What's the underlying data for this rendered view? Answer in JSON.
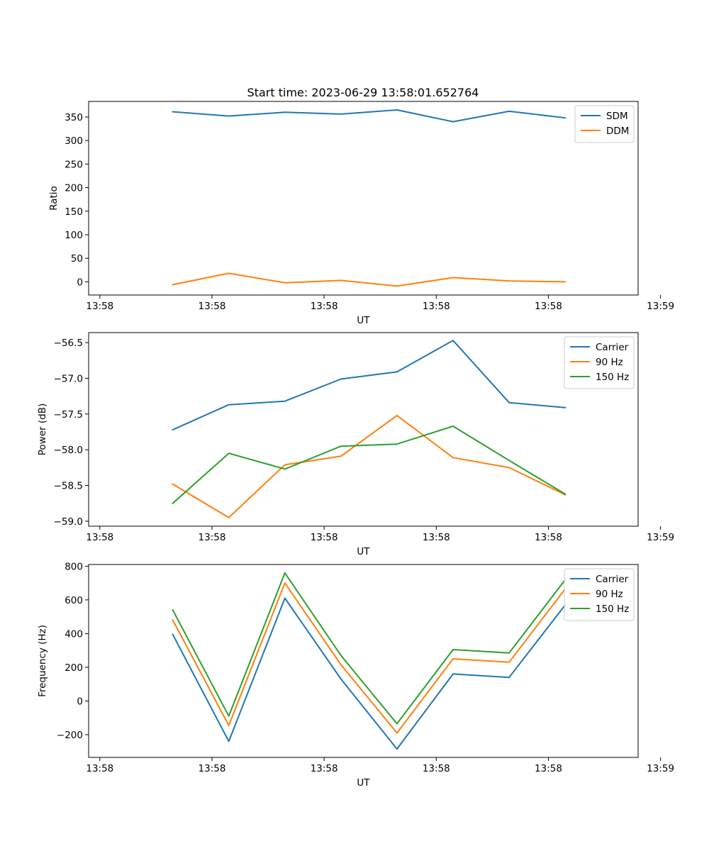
{
  "colors": {
    "blue": "#1f77b4",
    "orange": "#ff7f0e",
    "green": "#2ca02c"
  },
  "chart_data": [
    {
      "type": "line",
      "title": "Start time: 2023-06-29 13:58:01.652764",
      "xlabel": "UT",
      "ylabel": "Ratio",
      "x": [
        1.65,
        2.15,
        2.65,
        3.15,
        3.65,
        4.15,
        4.65,
        5.15
      ],
      "x_ticks": [
        1.0,
        2.0,
        3.0,
        4.0,
        5.0,
        6.0
      ],
      "x_tick_labels": [
        "13:58",
        "13:58",
        "13:58",
        "13:58",
        "13:58",
        "13:59"
      ],
      "xlim": [
        0.9,
        5.8
      ],
      "ylim": [
        -28,
        383
      ],
      "y_ticks": [
        0,
        50,
        100,
        150,
        200,
        250,
        300,
        350
      ],
      "y_tick_labels": [
        "0",
        "50",
        "100",
        "150",
        "200",
        "250",
        "300",
        "350"
      ],
      "grid": false,
      "legend_position": "top-right",
      "series": [
        {
          "name": "SDM",
          "color": "#1f77b4",
          "values": [
            361,
            352,
            360,
            356,
            365,
            340,
            362,
            348
          ]
        },
        {
          "name": "DDM",
          "color": "#ff7f0e",
          "values": [
            -6,
            18,
            -2,
            3,
            -9,
            9,
            2,
            0
          ]
        }
      ]
    },
    {
      "type": "line",
      "title": "",
      "xlabel": "UT",
      "ylabel": "Power (dB)",
      "x": [
        1.65,
        2.15,
        2.65,
        3.15,
        3.65,
        4.15,
        4.65,
        5.15
      ],
      "x_ticks": [
        1.0,
        2.0,
        3.0,
        4.0,
        5.0,
        6.0
      ],
      "x_tick_labels": [
        "13:58",
        "13:58",
        "13:58",
        "13:58",
        "13:58",
        "13:59"
      ],
      "xlim": [
        0.9,
        5.8
      ],
      "ylim": [
        -59.07,
        -56.36
      ],
      "y_ticks": [
        -59.0,
        -58.5,
        -58.0,
        -57.5,
        -57.0,
        -56.5
      ],
      "y_tick_labels": [
        "−59.0",
        "−58.5",
        "−58.0",
        "−57.5",
        "−57.0",
        "−56.5"
      ],
      "grid": false,
      "legend_position": "top-right",
      "series": [
        {
          "name": "Carrier",
          "color": "#1f77b4",
          "values": [
            -57.72,
            -57.37,
            -57.32,
            -57.01,
            -56.91,
            -56.47,
            -57.34,
            -57.41
          ]
        },
        {
          "name": "90 Hz",
          "color": "#ff7f0e",
          "values": [
            -58.48,
            -58.95,
            -58.21,
            -58.09,
            -57.52,
            -58.11,
            -58.25,
            -58.63
          ]
        },
        {
          "name": "150 Hz",
          "color": "#2ca02c",
          "values": [
            -58.75,
            -58.05,
            -58.27,
            -57.95,
            -57.92,
            -57.67,
            -58.15,
            -58.62
          ]
        }
      ]
    },
    {
      "type": "line",
      "title": "",
      "xlabel": "UT",
      "ylabel": "Frequency (Hz)",
      "x": [
        1.65,
        2.15,
        2.65,
        3.15,
        3.65,
        4.15,
        4.65,
        5.15
      ],
      "x_ticks": [
        1.0,
        2.0,
        3.0,
        4.0,
        5.0,
        6.0
      ],
      "x_tick_labels": [
        "13:58",
        "13:58",
        "13:58",
        "13:58",
        "13:58",
        "13:59"
      ],
      "xlim": [
        0.9,
        5.8
      ],
      "ylim": [
        -335,
        810
      ],
      "y_ticks": [
        -200,
        0,
        200,
        400,
        600,
        800
      ],
      "y_tick_labels": [
        "−200",
        "0",
        "200",
        "400",
        "600",
        "800"
      ],
      "grid": false,
      "legend_position": "top-right",
      "series": [
        {
          "name": "Carrier",
          "color": "#1f77b4",
          "values": [
            395,
            -240,
            610,
            130,
            -285,
            160,
            140,
            570
          ]
        },
        {
          "name": "90 Hz",
          "color": "#ff7f0e",
          "values": [
            480,
            -145,
            700,
            215,
            -190,
            250,
            230,
            665
          ]
        },
        {
          "name": "150 Hz",
          "color": "#2ca02c",
          "values": [
            540,
            -90,
            760,
            270,
            -135,
            305,
            285,
            720
          ]
        }
      ]
    }
  ]
}
